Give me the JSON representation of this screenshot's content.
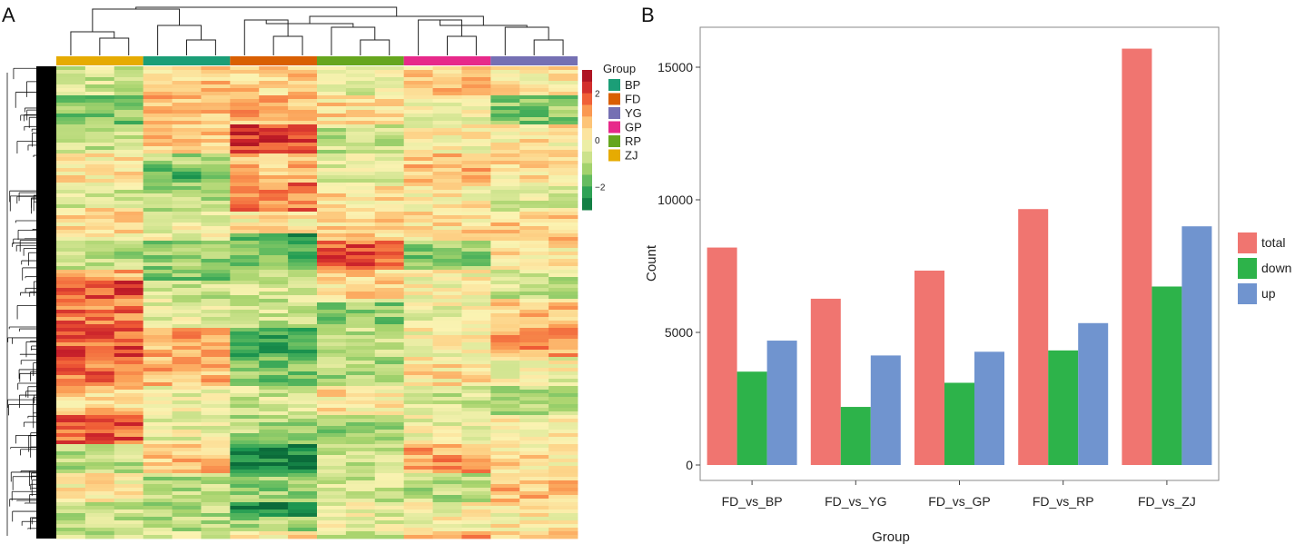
{
  "chart_data": [
    {
      "type": "heatmap",
      "panel_label": "A",
      "column_groups": [
        "ZJ",
        "BP",
        "FD",
        "RP",
        "GP",
        "YG"
      ],
      "replicates_per_group": 3,
      "legend": {
        "title": "Group",
        "entries": [
          {
            "label": "BP",
            "color": "#1b9e77"
          },
          {
            "label": "FD",
            "color": "#d95f02"
          },
          {
            "label": "YG",
            "color": "#7570b3"
          },
          {
            "label": "GP",
            "color": "#e7298a"
          },
          {
            "label": "RP",
            "color": "#66a61e"
          },
          {
            "label": "ZJ",
            "color": "#e6ab02"
          }
        ],
        "scale_ticks": [
          "2",
          "0",
          "−2"
        ],
        "scale_range": [
          -3,
          3
        ]
      },
      "color_scale": [
        "#0b6b3a",
        "#1e9a52",
        "#5fba5f",
        "#a9d46e",
        "#d8e796",
        "#fbf3b2",
        "#fdd084",
        "#fb9e55",
        "#ef5a35",
        "#c8202a",
        "#9e0e1f"
      ]
    },
    {
      "type": "bar",
      "panel_label": "B",
      "categories": [
        "FD_vs_BP",
        "FD_vs_YG",
        "FD_vs_GP",
        "FD_vs_RP",
        "FD_vs_ZJ"
      ],
      "series": [
        {
          "name": "total",
          "color": "#f07570",
          "values": [
            8200,
            6270,
            7330,
            9650,
            15700
          ]
        },
        {
          "name": "down",
          "color": "#2db34a",
          "values": [
            3520,
            2190,
            3100,
            4320,
            6730
          ]
        },
        {
          "name": "up",
          "color": "#7094cf",
          "values": [
            4690,
            4130,
            4270,
            5350,
            9000
          ]
        }
      ],
      "xlabel": "Group",
      "ylabel": "Count",
      "ylim": [
        0,
        16500
      ],
      "yticks": [
        0,
        5000,
        10000,
        15000
      ],
      "legend_position": "right"
    }
  ]
}
